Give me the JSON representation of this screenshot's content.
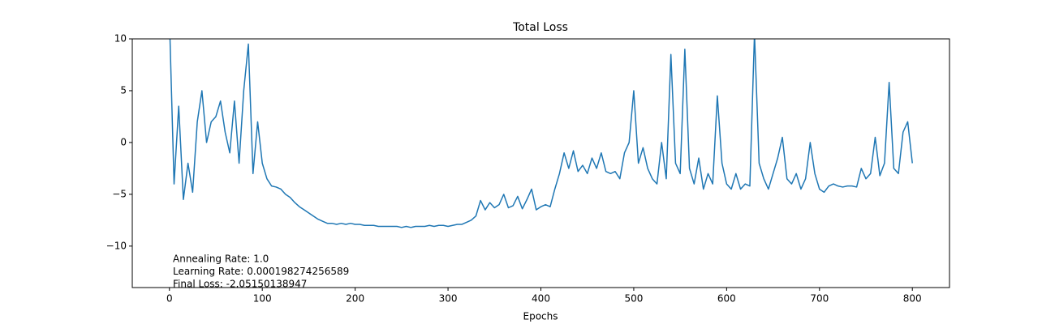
{
  "chart_data": {
    "type": "line",
    "title": "Total Loss",
    "x_label": "Epochs",
    "annotations": [
      "Annealing Rate: 1.0",
      "Learning Rate: 0.000198274256589",
      "Final Loss: -2.05150138947"
    ],
    "xlim": [
      -40,
      840
    ],
    "ylim": [
      -14,
      10
    ],
    "xticks": [
      0,
      100,
      200,
      300,
      400,
      500,
      600,
      700,
      800
    ],
    "yticks": [
      {
        "value": -10,
        "label": "−10"
      },
      {
        "value": -5,
        "label": "−5"
      },
      0,
      5,
      10
    ],
    "x": [
      0,
      5,
      10,
      15,
      20,
      25,
      30,
      35,
      40,
      45,
      50,
      55,
      60,
      65,
      70,
      75,
      80,
      85,
      90,
      95,
      100,
      105,
      110,
      115,
      120,
      125,
      130,
      135,
      140,
      145,
      150,
      155,
      160,
      165,
      170,
      175,
      180,
      185,
      190,
      195,
      200,
      205,
      210,
      215,
      220,
      225,
      230,
      235,
      240,
      245,
      250,
      255,
      260,
      265,
      270,
      275,
      280,
      285,
      290,
      295,
      300,
      305,
      310,
      315,
      320,
      325,
      330,
      335,
      340,
      345,
      350,
      355,
      360,
      365,
      370,
      375,
      380,
      385,
      390,
      395,
      400,
      405,
      410,
      415,
      420,
      425,
      430,
      435,
      440,
      445,
      450,
      455,
      460,
      465,
      470,
      475,
      480,
      485,
      490,
      495,
      500,
      505,
      510,
      515,
      520,
      525,
      530,
      535,
      540,
      545,
      550,
      555,
      560,
      565,
      570,
      575,
      580,
      585,
      590,
      595,
      600,
      605,
      610,
      615,
      620,
      625,
      630,
      635,
      640,
      645,
      650,
      655,
      660,
      665,
      670,
      675,
      680,
      685,
      690,
      695,
      700,
      705,
      710,
      715,
      720,
      725,
      730,
      735,
      740,
      745,
      750,
      755,
      760,
      765,
      770,
      775,
      780,
      785,
      790,
      795,
      800
    ],
    "series": [
      {
        "color": "#1f77b4",
        "values": [
          12,
          -4,
          3.5,
          -5.5,
          -2,
          -4.8,
          2,
          5,
          0,
          2,
          2.5,
          4,
          1,
          -1,
          4,
          -2,
          5,
          9.5,
          -3,
          2,
          -2,
          -3.5,
          -4.2,
          -4.3,
          -4.5,
          -5,
          -5.3,
          -5.8,
          -6.2,
          -6.5,
          -6.8,
          -7.1,
          -7.4,
          -7.6,
          -7.8,
          -7.8,
          -7.9,
          -7.8,
          -7.9,
          -7.8,
          -7.9,
          -7.9,
          -8,
          -8,
          -8,
          -8.1,
          -8.1,
          -8.1,
          -8.1,
          -8.1,
          -8.2,
          -8.1,
          -8.2,
          -8.1,
          -8.1,
          -8.1,
          -8,
          -8.1,
          -8,
          -8,
          -8.1,
          -8,
          -7.9,
          -7.9,
          -7.7,
          -7.5,
          -7.1,
          -5.6,
          -6.5,
          -5.8,
          -6.3,
          -6,
          -5,
          -6.3,
          -6.1,
          -5.2,
          -6.4,
          -5.5,
          -4.5,
          -6.5,
          -6.2,
          -6,
          -6.2,
          -4.5,
          -3,
          -1,
          -2.5,
          -0.8,
          -2.8,
          -2.2,
          -3,
          -1.5,
          -2.5,
          -1,
          -2.8,
          -3,
          -2.8,
          -3.5,
          -1,
          0,
          5,
          -2,
          -0.5,
          -2.5,
          -3.5,
          -4,
          0,
          -3.5,
          8.5,
          -2,
          -3,
          9,
          -2.5,
          -4,
          -1.5,
          -4.5,
          -3,
          -4,
          4.5,
          -2,
          -4,
          -4.5,
          -3,
          -4.5,
          -4,
          -4.2,
          10.5,
          -2,
          -3.5,
          -4.5,
          -3,
          -1.5,
          0.5,
          -3.5,
          -4,
          -3,
          -4.5,
          -3.5,
          0,
          -3,
          -4.5,
          -4.8,
          -4.2,
          -4,
          -4.2,
          -4.3,
          -4.2,
          -4.2,
          -4.3,
          -2.5,
          -3.5,
          -3,
          0.5,
          -3.2,
          -2,
          5.8,
          -2.5,
          -3,
          1,
          2,
          -2
        ]
      }
    ]
  }
}
